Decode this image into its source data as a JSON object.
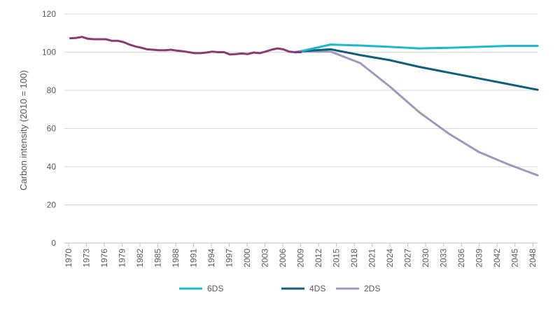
{
  "chart_data": {
    "type": "line",
    "title": "",
    "xlabel": "",
    "ylabel": "Carbon intensity (2010 = 100)",
    "ylim": [
      0,
      120
    ],
    "yticks": [
      0,
      20,
      40,
      60,
      80,
      100,
      120
    ],
    "xlim": [
      1970,
      2050
    ],
    "xtick_labels": [
      "1970",
      "1973",
      "1976",
      "1979",
      "1982",
      "1985",
      "1988",
      "1991",
      "1994",
      "1997",
      "2000",
      "2003",
      "2006",
      "2009",
      "2012",
      "2015",
      "2018",
      "2021",
      "2024",
      "2027",
      "2030",
      "2033",
      "2036",
      "2039",
      "2042",
      "2045",
      "2048"
    ],
    "grid": true,
    "legend_position": "bottom",
    "historical": {
      "color": "#8B3A78",
      "x": [
        1971,
        1972,
        1973,
        1974,
        1975,
        1976,
        1977,
        1978,
        1979,
        1980,
        1981,
        1982,
        1983,
        1984,
        1985,
        1986,
        1987,
        1988,
        1989,
        1990,
        1991,
        1992,
        1993,
        1994,
        1995,
        1996,
        1997,
        1998,
        1999,
        2000,
        2001,
        2002,
        2003,
        2004,
        2005,
        2006,
        2007,
        2008,
        2009,
        2010
      ],
      "values": [
        107.3,
        107.5,
        108.0,
        107.0,
        106.8,
        106.8,
        106.8,
        106.0,
        106.0,
        105.3,
        104.0,
        103.0,
        102.3,
        101.5,
        101.3,
        101.0,
        101.0,
        101.3,
        100.8,
        100.5,
        100.0,
        99.5,
        99.5,
        99.8,
        100.3,
        100.0,
        100.0,
        98.8,
        99.0,
        99.3,
        99.0,
        99.8,
        99.5,
        100.3,
        101.3,
        102.0,
        101.5,
        100.3,
        100.0,
        100.0
      ]
    },
    "series": [
      {
        "name": "6DS",
        "color": "#1CB8D1",
        "x": [
          2009,
          2010,
          2015,
          2020,
          2025,
          2030,
          2035,
          2040,
          2045,
          2050
        ],
        "values": [
          100.0,
          100.5,
          104.0,
          103.5,
          102.8,
          102.0,
          102.3,
          102.8,
          103.3,
          103.3
        ]
      },
      {
        "name": "4DS",
        "color": "#0F5E7E",
        "x": [
          2009,
          2010,
          2015,
          2020,
          2025,
          2030,
          2035,
          2040,
          2045,
          2050
        ],
        "values": [
          100.0,
          100.5,
          101.5,
          98.5,
          95.8,
          92.3,
          89.3,
          86.3,
          83.3,
          80.3
        ]
      },
      {
        "name": "2DS",
        "color": "#9E98BE",
        "x": [
          2009,
          2010,
          2015,
          2020,
          2025,
          2030,
          2035,
          2040,
          2045,
          2050
        ],
        "values": [
          100.0,
          100.3,
          100.3,
          94.3,
          82.0,
          68.5,
          57.3,
          47.8,
          41.3,
          35.5
        ]
      }
    ]
  }
}
